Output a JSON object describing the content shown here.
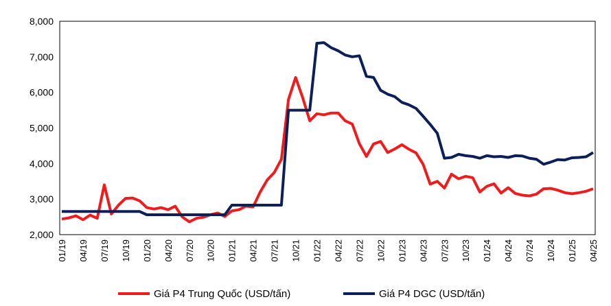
{
  "chart_data": {
    "type": "line",
    "title": "",
    "xlabel": "",
    "ylabel": "",
    "ylim": [
      2000,
      8000
    ],
    "yticks": [
      2000,
      3000,
      4000,
      5000,
      6000,
      7000,
      8000
    ],
    "ytick_labels": [
      "2,000",
      "3,000",
      "4,000",
      "5,000",
      "6,000",
      "7,000",
      "8,000"
    ],
    "xtick_labels": [
      "01/19",
      "04/19",
      "07/19",
      "10/19",
      "01/20",
      "04/20",
      "07/20",
      "10/20",
      "01/21",
      "04/21",
      "07/21",
      "10/21",
      "01/22",
      "04/22",
      "07/22",
      "10/22",
      "01/23",
      "04/23",
      "07/23",
      "10/23",
      "01/24",
      "04/24",
      "07/24",
      "10/24",
      "01/25",
      "04/25"
    ],
    "x_unit": "month index from 01/2019",
    "x_range": [
      0,
      75
    ],
    "legend_position": "bottom",
    "series": [
      {
        "name": "Giá P4 Trung Quốc (USD/tấn)",
        "color": "#ee1c1c",
        "points": [
          [
            0,
            2440
          ],
          [
            1,
            2470
          ],
          [
            2,
            2530
          ],
          [
            3,
            2420
          ],
          [
            4,
            2550
          ],
          [
            5,
            2460
          ],
          [
            6,
            3400
          ],
          [
            7,
            2580
          ],
          [
            8,
            2830
          ],
          [
            9,
            3020
          ],
          [
            10,
            3030
          ],
          [
            11,
            2950
          ],
          [
            12,
            2760
          ],
          [
            13,
            2720
          ],
          [
            14,
            2760
          ],
          [
            15,
            2700
          ],
          [
            16,
            2800
          ],
          [
            17,
            2500
          ],
          [
            18,
            2360
          ],
          [
            19,
            2460
          ],
          [
            20,
            2490
          ],
          [
            21,
            2560
          ],
          [
            22,
            2610
          ],
          [
            23,
            2510
          ],
          [
            24,
            2670
          ],
          [
            25,
            2700
          ],
          [
            26,
            2800
          ],
          [
            27,
            2780
          ],
          [
            28,
            3200
          ],
          [
            29,
            3540
          ],
          [
            30,
            3750
          ],
          [
            31,
            4120
          ],
          [
            32,
            5800
          ],
          [
            33,
            6420
          ],
          [
            34,
            5850
          ],
          [
            35,
            5200
          ],
          [
            36,
            5400
          ],
          [
            37,
            5370
          ],
          [
            38,
            5420
          ],
          [
            39,
            5420
          ],
          [
            40,
            5200
          ],
          [
            41,
            5110
          ],
          [
            42,
            4560
          ],
          [
            43,
            4200
          ],
          [
            44,
            4550
          ],
          [
            45,
            4620
          ],
          [
            46,
            4310
          ],
          [
            47,
            4410
          ],
          [
            48,
            4530
          ],
          [
            49,
            4400
          ],
          [
            50,
            4300
          ],
          [
            51,
            3980
          ],
          [
            52,
            3420
          ],
          [
            53,
            3500
          ],
          [
            54,
            3310
          ],
          [
            55,
            3700
          ],
          [
            56,
            3570
          ],
          [
            57,
            3640
          ],
          [
            58,
            3600
          ],
          [
            59,
            3200
          ],
          [
            60,
            3360
          ],
          [
            61,
            3430
          ],
          [
            62,
            3170
          ],
          [
            63,
            3320
          ],
          [
            64,
            3160
          ],
          [
            65,
            3110
          ],
          [
            66,
            3090
          ],
          [
            67,
            3140
          ],
          [
            68,
            3290
          ],
          [
            69,
            3300
          ],
          [
            70,
            3250
          ],
          [
            71,
            3180
          ],
          [
            72,
            3150
          ],
          [
            73,
            3180
          ],
          [
            74,
            3220
          ],
          [
            75,
            3290
          ]
        ]
      },
      {
        "name": "Giá P4 DGC (USD/tấn)",
        "color": "#0d1f5a",
        "points": [
          [
            0,
            2650
          ],
          [
            11,
            2650
          ],
          [
            12,
            2560
          ],
          [
            23,
            2560
          ],
          [
            24,
            2830
          ],
          [
            31,
            2830
          ],
          [
            32,
            5500
          ],
          [
            35,
            5500
          ],
          [
            36,
            7380
          ],
          [
            37,
            7400
          ],
          [
            38,
            7260
          ],
          [
            39,
            7170
          ],
          [
            40,
            7050
          ],
          [
            41,
            7000
          ],
          [
            42,
            7030
          ],
          [
            43,
            6450
          ],
          [
            44,
            6420
          ],
          [
            45,
            6060
          ],
          [
            46,
            5950
          ],
          [
            47,
            5880
          ],
          [
            48,
            5720
          ],
          [
            49,
            5650
          ],
          [
            50,
            5550
          ],
          [
            51,
            5330
          ],
          [
            52,
            5100
          ],
          [
            53,
            4850
          ],
          [
            54,
            4150
          ],
          [
            55,
            4170
          ],
          [
            56,
            4260
          ],
          [
            57,
            4220
          ],
          [
            58,
            4200
          ],
          [
            59,
            4150
          ],
          [
            60,
            4220
          ],
          [
            61,
            4190
          ],
          [
            62,
            4200
          ],
          [
            63,
            4170
          ],
          [
            64,
            4220
          ],
          [
            65,
            4210
          ],
          [
            66,
            4150
          ],
          [
            67,
            4120
          ],
          [
            68,
            3980
          ],
          [
            69,
            4040
          ],
          [
            70,
            4110
          ],
          [
            71,
            4100
          ],
          [
            72,
            4160
          ],
          [
            73,
            4170
          ],
          [
            74,
            4190
          ],
          [
            75,
            4310
          ]
        ]
      }
    ]
  }
}
